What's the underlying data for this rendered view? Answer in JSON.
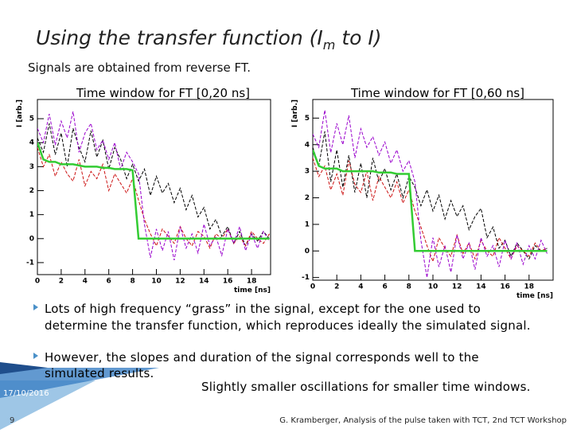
{
  "slide": {
    "title": [
      "Using the transfer function (I",
      "m",
      " to I)"
    ],
    "subtitle": "Signals are obtained from reverse FT.",
    "bullets": [
      "Lots of high frequency “grass” in the signal, except for the one used to determine the transfer function, which reproduces ideally the simulated signal.",
      "However, the slopes and duration of the signal corresponds well to the simulated results."
    ],
    "remark": "Slightly smaller oscillations for smaller time windows.",
    "date": "17/10/2016",
    "page": "9",
    "credit": "G. Kramberger, Analysis of the pulse taken with TCT, 2nd TCT Workshop"
  },
  "chart_data": [
    {
      "type": "line",
      "title": "Time window for FT [0,20 ns]",
      "x_label": "time [ns]",
      "y_label": "I [arb.]",
      "xlim": [
        0,
        19.6
      ],
      "ylim": [
        -1.5,
        5.8
      ],
      "xticks": [
        0,
        2,
        4,
        6,
        8,
        10,
        12,
        14,
        16,
        18
      ],
      "yticks": [
        -1,
        0,
        1,
        2,
        3,
        4,
        5
      ],
      "x": [
        0,
        0.5,
        1,
        1.5,
        2,
        2.5,
        3,
        3.5,
        4,
        4.5,
        5,
        5.5,
        6,
        6.5,
        7,
        7.5,
        8,
        8.5,
        9,
        9.5,
        10,
        10.5,
        11,
        11.5,
        12,
        12.5,
        13,
        13.5,
        14,
        14.5,
        15,
        15.5,
        16,
        16.5,
        17,
        17.5,
        18,
        18.5,
        19,
        19.5
      ],
      "series": [
        {
          "color": "#000000",
          "dashed": true,
          "values": [
            4.2,
            3.6,
            4.8,
            3.5,
            4.4,
            3.0,
            4.6,
            3.8,
            3.2,
            4.5,
            3.4,
            4.1,
            2.9,
            3.8,
            3.3,
            2.5,
            3.1,
            2.4,
            2.9,
            1.8,
            2.6,
            1.9,
            2.3,
            1.5,
            2.1,
            1.2,
            1.8,
            0.9,
            1.3,
            0.4,
            0.8,
            0.1,
            0.5,
            -0.2,
            0.3,
            -0.3,
            0.2,
            -0.1,
            0.3,
            0.0
          ]
        },
        {
          "color": "#cc1111",
          "dashed": true,
          "values": [
            3.8,
            3.0,
            3.5,
            2.6,
            3.2,
            2.7,
            2.4,
            3.3,
            2.2,
            2.8,
            2.5,
            3.1,
            2.0,
            2.7,
            2.3,
            1.9,
            2.5,
            1.6,
            0.8,
            0.2,
            -0.3,
            0.4,
            0.1,
            -0.2,
            0.5,
            0.0,
            -0.3,
            0.3,
            0.1,
            -0.4,
            0.2,
            0.0,
            0.4,
            -0.2,
            0.1,
            -0.3,
            0.3,
            0.0,
            -0.2,
            0.2
          ]
        },
        {
          "color": "#9900cc",
          "dashed": true,
          "values": [
            4.6,
            4.0,
            5.2,
            3.9,
            4.9,
            4.2,
            5.3,
            3.6,
            4.4,
            4.8,
            3.7,
            4.1,
            3.3,
            4.0,
            2.9,
            3.6,
            3.2,
            2.7,
            0.6,
            -0.8,
            0.4,
            -0.5,
            0.3,
            -0.9,
            0.5,
            -0.4,
            0.2,
            -0.6,
            0.6,
            -0.3,
            0.1,
            -0.7,
            0.4,
            -0.2,
            0.5,
            -0.5,
            0.2,
            -0.4,
            0.3,
            -0.1
          ]
        },
        {
          "color": "#33cc33",
          "dashed": false,
          "values": [
            4.0,
            3.3,
            3.2,
            3.2,
            3.1,
            3.1,
            3.1,
            3.05,
            3.0,
            3.0,
            3.0,
            2.95,
            2.95,
            2.9,
            2.9,
            2.9,
            2.85,
            0.0,
            0.0,
            0.0,
            0.0,
            0.0,
            0.0,
            0.0,
            0.0,
            0.0,
            0.0,
            0.0,
            0.0,
            0.0,
            0.0,
            0.0,
            0.0,
            0.0,
            0.0,
            0.0,
            0.0,
            0.0,
            0.0,
            0.0
          ]
        }
      ]
    },
    {
      "type": "line",
      "title": "Time window for FT [0,60 ns]",
      "x_label": "time [ns]",
      "y_label": "I [arb.]",
      "xlim": [
        0,
        20
      ],
      "ylim": [
        -1.1,
        5.7
      ],
      "xticks": [
        0,
        2,
        4,
        6,
        8,
        10,
        12,
        14,
        16,
        18
      ],
      "yticks": [
        -1,
        0,
        1,
        2,
        3,
        4,
        5
      ],
      "x": [
        0,
        0.5,
        1,
        1.5,
        2,
        2.5,
        3,
        3.5,
        4,
        4.5,
        5,
        5.5,
        6,
        6.5,
        7,
        7.5,
        8,
        8.5,
        9,
        9.5,
        10,
        10.5,
        11,
        11.5,
        12,
        12.5,
        13,
        13.5,
        14,
        14.5,
        15,
        15.5,
        16,
        16.5,
        17,
        17.5,
        18,
        18.5,
        19,
        19.5
      ],
      "series": [
        {
          "color": "#000000",
          "dashed": true,
          "values": [
            3.9,
            3.2,
            4.5,
            2.6,
            3.8,
            2.4,
            3.6,
            2.2,
            3.3,
            2.0,
            3.5,
            2.6,
            3.1,
            2.3,
            2.9,
            2.0,
            2.8,
            2.4,
            1.7,
            2.3,
            1.5,
            2.1,
            1.2,
            1.9,
            1.3,
            1.7,
            0.8,
            1.3,
            1.6,
            0.5,
            0.9,
            0.1,
            0.4,
            -0.2,
            0.3,
            0.0,
            -0.3,
            0.2,
            0.0,
            0.1
          ]
        },
        {
          "color": "#cc1111",
          "dashed": true,
          "values": [
            3.5,
            2.8,
            3.2,
            2.3,
            2.9,
            2.1,
            3.4,
            2.5,
            2.2,
            3.0,
            1.9,
            2.8,
            2.4,
            2.0,
            2.6,
            1.8,
            2.3,
            1.5,
            0.9,
            0.2,
            -0.4,
            0.5,
            0.1,
            -0.2,
            0.6,
            -0.1,
            0.3,
            -0.3,
            0.4,
            0.0,
            -0.2,
            0.5,
            0.1,
            -0.3,
            0.2,
            0.0,
            -0.2,
            0.3,
            0.0,
            0.1
          ]
        },
        {
          "color": "#9900cc",
          "dashed": true,
          "values": [
            4.4,
            3.9,
            5.3,
            3.7,
            4.8,
            4.0,
            5.1,
            3.5,
            4.6,
            3.9,
            4.3,
            3.6,
            4.1,
            3.3,
            3.8,
            3.0,
            3.4,
            2.6,
            0.4,
            -1.0,
            0.5,
            -0.6,
            0.2,
            -0.8,
            0.6,
            -0.3,
            0.3,
            -0.7,
            0.5,
            -0.2,
            0.2,
            -0.6,
            0.4,
            -0.3,
            0.3,
            -0.5,
            0.2,
            -0.3,
            0.4,
            -0.1
          ]
        },
        {
          "color": "#33cc33",
          "dashed": false,
          "values": [
            3.8,
            3.2,
            3.1,
            3.1,
            3.1,
            3.0,
            3.0,
            3.0,
            3.0,
            3.0,
            3.0,
            2.95,
            2.95,
            2.95,
            2.9,
            2.9,
            2.9,
            0.0,
            0.0,
            0.0,
            0.0,
            0.0,
            0.0,
            0.0,
            0.0,
            0.0,
            0.0,
            0.0,
            0.0,
            0.0,
            0.0,
            0.0,
            0.0,
            0.0,
            0.0,
            0.0,
            0.0,
            0.0,
            0.0,
            0.0
          ]
        }
      ]
    }
  ]
}
